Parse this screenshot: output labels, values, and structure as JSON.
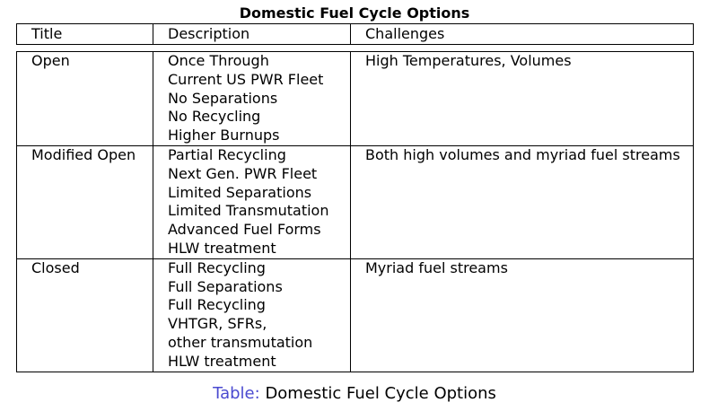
{
  "header": {
    "title": "Domestic Fuel Cycle Options"
  },
  "table": {
    "columns": [
      "Title",
      "Description",
      "Challenges"
    ],
    "rows": [
      {
        "title": "Open",
        "description": [
          "Once Through",
          "Current US PWR Fleet",
          "No Separations",
          "No Recycling",
          "Higher Burnups"
        ],
        "challenges": "High Temperatures, Volumes"
      },
      {
        "title": "Modified Open",
        "description": [
          "Partial Recycling",
          "Next Gen. PWR Fleet",
          "Limited Separations",
          "Limited Transmutation",
          "Advanced Fuel Forms",
          "HLW treatment"
        ],
        "challenges": "Both high volumes and myriad fuel streams"
      },
      {
        "title": "Closed",
        "description": [
          "Full Recycling",
          "Full Separations",
          "Full Recycling",
          "VHTGR, SFRs,",
          "other transmutation",
          "HLW treatment"
        ],
        "challenges": "Myriad fuel streams"
      }
    ]
  },
  "caption": {
    "label": "Table:",
    "text": "Domestic Fuel Cycle Options"
  },
  "colors": {
    "caption_label": "#4a4ad0",
    "text": "#000000",
    "background": "#ffffff"
  }
}
